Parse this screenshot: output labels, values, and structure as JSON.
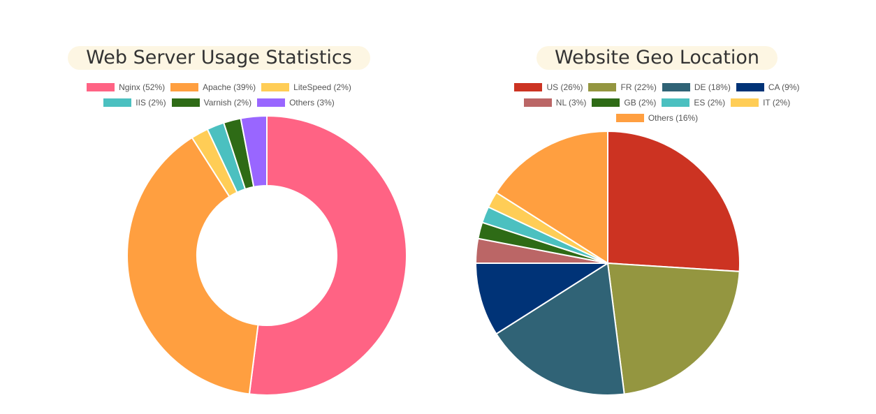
{
  "chart_data": [
    {
      "type": "doughnut",
      "title": "Web Server Usage Statistics",
      "legend_position": "top",
      "categories": [
        "Nginx",
        "Apache",
        "LiteSpeed",
        "IIS",
        "Varnish",
        "Others"
      ],
      "values": [
        52,
        39,
        2,
        2,
        2,
        3
      ],
      "value_unit": "%",
      "legend_labels": [
        "Nginx (52%)",
        "Apache (39%)",
        "LiteSpeed (2%)",
        "IIS (2%)",
        "Varnish (2%)",
        "Others (3%)"
      ],
      "colors": [
        "#ff6384",
        "#ff9f40",
        "#ffcd56",
        "#4bc0c0",
        "#2e6b16",
        "#9966ff"
      ]
    },
    {
      "type": "pie",
      "title": "Website Geo Location",
      "legend_position": "top",
      "categories": [
        "US",
        "FR",
        "DE",
        "CA",
        "NL",
        "GB",
        "ES",
        "IT",
        "Others"
      ],
      "values": [
        26,
        22,
        18,
        9,
        3,
        2,
        2,
        2,
        16
      ],
      "value_unit": "%",
      "legend_labels": [
        "US (26%)",
        "FR (22%)",
        "DE (18%)",
        "CA (9%)",
        "NL (3%)",
        "GB (2%)",
        "ES (2%)",
        "IT (2%)",
        "Others (16%)"
      ],
      "colors": [
        "#cc3322",
        "#949640",
        "#306376",
        "#003377",
        "#bb6666",
        "#2e6b16",
        "#4bc0c0",
        "#ffcd56",
        "#ff9f40"
      ]
    }
  ]
}
